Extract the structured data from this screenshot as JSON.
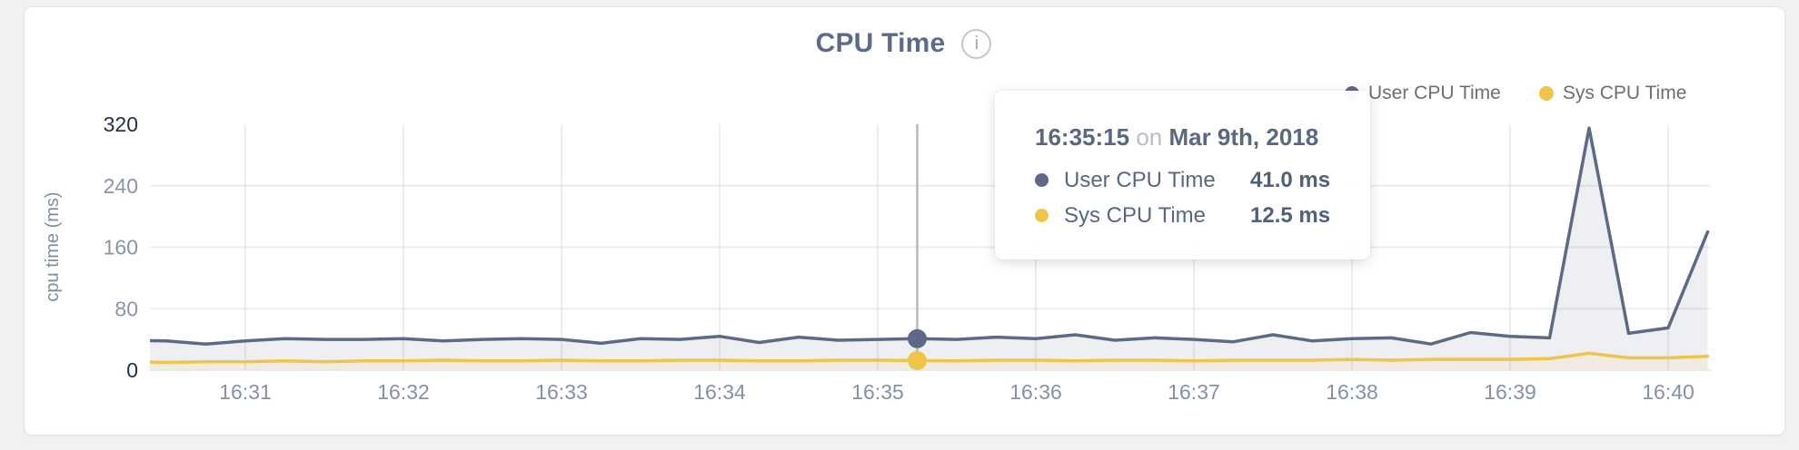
{
  "page": {
    "background": "#f1f1f2",
    "card_background": "#ffffff"
  },
  "header": {
    "title": "CPU Time",
    "info_icon_glyph": "i"
  },
  "legend": [
    {
      "label": "User CPU Time",
      "color": "#5e6a85"
    },
    {
      "label": "Sys CPU Time",
      "color": "#efc44a"
    }
  ],
  "tooltip": {
    "time": "16:35:15",
    "connector": "on",
    "date": "Mar 9th, 2018",
    "rows": [
      {
        "label": "User CPU Time",
        "value": "41.0 ms",
        "color": "#5e6a85"
      },
      {
        "label": "Sys CPU Time",
        "value": "12.5 ms",
        "color": "#efc44a"
      }
    ]
  },
  "chart_data": {
    "type": "area",
    "title": "CPU Time",
    "xlabel": "",
    "ylabel": "cpu time (ms)",
    "ylim": [
      0,
      320
    ],
    "y_ticks": [
      320,
      240,
      160,
      80,
      0
    ],
    "x_ticks": [
      "16:31",
      "16:32",
      "16:33",
      "16:34",
      "16:35",
      "16:36",
      "16:37",
      "16:38",
      "16:39",
      "16:40"
    ],
    "grid": true,
    "legend_position": "top-right",
    "x": [
      "16:30:15",
      "16:30:30",
      "16:30:45",
      "16:31:00",
      "16:31:15",
      "16:31:30",
      "16:31:45",
      "16:32:00",
      "16:32:15",
      "16:32:30",
      "16:32:45",
      "16:33:00",
      "16:33:15",
      "16:33:30",
      "16:33:45",
      "16:34:00",
      "16:34:15",
      "16:34:30",
      "16:34:45",
      "16:35:00",
      "16:35:15",
      "16:35:30",
      "16:35:45",
      "16:36:00",
      "16:36:15",
      "16:36:30",
      "16:36:45",
      "16:37:00",
      "16:37:15",
      "16:37:30",
      "16:37:45",
      "16:38:00",
      "16:38:15",
      "16:38:30",
      "16:38:45",
      "16:39:00",
      "16:39:15",
      "16:39:30",
      "16:39:45",
      "16:40:00",
      "16:40:15"
    ],
    "series": [
      {
        "name": "User CPU Time",
        "color": "#5e6a85",
        "fill": "#edeff3",
        "values": [
          39,
          38,
          34,
          38,
          41,
          40,
          40,
          41,
          38,
          40,
          41,
          40,
          35,
          41,
          40,
          44,
          36,
          43,
          39,
          40,
          41,
          40,
          43,
          41,
          46,
          39,
          42,
          40,
          37,
          46,
          38,
          41,
          42,
          34,
          49,
          44,
          42,
          315,
          48,
          55,
          180
        ]
      },
      {
        "name": "Sys CPU Time",
        "color": "#efc44a",
        "fill": "#f0ece1",
        "values": [
          11,
          10,
          11,
          11,
          12,
          11,
          12,
          12,
          13,
          12,
          12,
          13,
          12,
          12,
          13,
          13,
          12,
          12,
          13,
          13,
          12.5,
          12,
          13,
          13,
          12,
          13,
          13,
          12,
          13,
          13,
          13,
          14,
          13,
          14,
          14,
          14,
          15,
          22,
          16,
          16,
          18
        ]
      }
    ],
    "highlight": {
      "time": "16:35:15",
      "user_value_ms": 41.0,
      "sys_value_ms": 12.5
    },
    "colors": {
      "crosshair": "#b9b9b9",
      "grid_line": "rgba(0,0,0,0.07)",
      "baseline": "#e6e6e6",
      "axis_tick_dark": "#22304f",
      "axis_tick_light": "#8a94a9",
      "x_tick": "#8491a8",
      "axis_label": "#7f8ca2"
    }
  }
}
